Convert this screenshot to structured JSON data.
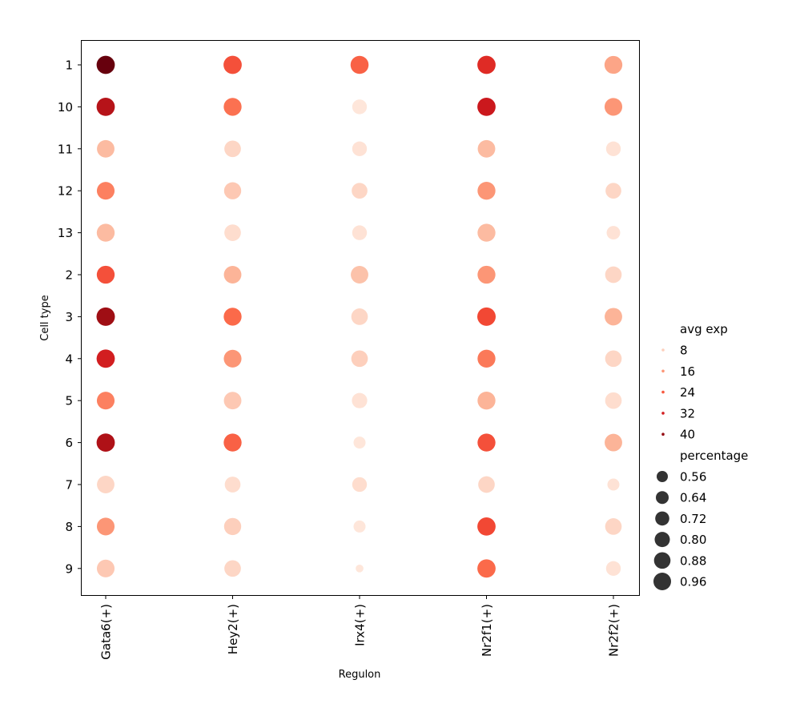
{
  "chart_data": {
    "type": "dotplot",
    "xlabel": "Regulon",
    "ylabel": "Cell type",
    "regulons": [
      "Gata6(+)",
      "Hey2(+)",
      "Irx4(+)",
      "Nr2f1(+)",
      "Nr2f2(+)"
    ],
    "cell_types": [
      "1",
      "10",
      "11",
      "12",
      "13",
      "2",
      "3",
      "4",
      "5",
      "6",
      "7",
      "8",
      "9"
    ],
    "points": [
      {
        "cell_type": "1",
        "values": [
          {
            "avg_exp": 44,
            "percentage": 0.95
          },
          {
            "avg_exp": 25,
            "percentage": 0.95
          },
          {
            "avg_exp": 23,
            "percentage": 0.94
          },
          {
            "avg_exp": 30,
            "percentage": 0.95
          },
          {
            "avg_exp": 14,
            "percentage": 0.93
          }
        ]
      },
      {
        "cell_type": "10",
        "values": [
          {
            "avg_exp": 36,
            "percentage": 0.95
          },
          {
            "avg_exp": 21,
            "percentage": 0.93
          },
          {
            "avg_exp": 4,
            "percentage": 0.77
          },
          {
            "avg_exp": 33,
            "percentage": 0.95
          },
          {
            "avg_exp": 16,
            "percentage": 0.92
          }
        ]
      },
      {
        "cell_type": "11",
        "values": [
          {
            "avg_exp": 11,
            "percentage": 0.91
          },
          {
            "avg_exp": 7,
            "percentage": 0.86
          },
          {
            "avg_exp": 5,
            "percentage": 0.77
          },
          {
            "avg_exp": 11,
            "percentage": 0.91
          },
          {
            "avg_exp": 5,
            "percentage": 0.77
          }
        ]
      },
      {
        "cell_type": "12",
        "values": [
          {
            "avg_exp": 19,
            "percentage": 0.92
          },
          {
            "avg_exp": 9,
            "percentage": 0.89
          },
          {
            "avg_exp": 7,
            "percentage": 0.82
          },
          {
            "avg_exp": 16,
            "percentage": 0.93
          },
          {
            "avg_exp": 7,
            "percentage": 0.82
          }
        ]
      },
      {
        "cell_type": "13",
        "values": [
          {
            "avg_exp": 11,
            "percentage": 0.93
          },
          {
            "avg_exp": 6,
            "percentage": 0.86
          },
          {
            "avg_exp": 5,
            "percentage": 0.77
          },
          {
            "avg_exp": 11,
            "percentage": 0.93
          },
          {
            "avg_exp": 5,
            "percentage": 0.72
          }
        ]
      },
      {
        "cell_type": "2",
        "values": [
          {
            "avg_exp": 25,
            "percentage": 0.93
          },
          {
            "avg_exp": 12,
            "percentage": 0.91
          },
          {
            "avg_exp": 10,
            "percentage": 0.91
          },
          {
            "avg_exp": 16,
            "percentage": 0.93
          },
          {
            "avg_exp": 7,
            "percentage": 0.86
          }
        ]
      },
      {
        "cell_type": "3",
        "values": [
          {
            "avg_exp": 39,
            "percentage": 0.96
          },
          {
            "avg_exp": 22,
            "percentage": 0.93
          },
          {
            "avg_exp": 7,
            "percentage": 0.86
          },
          {
            "avg_exp": 26,
            "percentage": 0.96
          },
          {
            "avg_exp": 12,
            "percentage": 0.91
          }
        ]
      },
      {
        "cell_type": "4",
        "values": [
          {
            "avg_exp": 32,
            "percentage": 0.95
          },
          {
            "avg_exp": 16,
            "percentage": 0.92
          },
          {
            "avg_exp": 8,
            "percentage": 0.86
          },
          {
            "avg_exp": 20,
            "percentage": 0.93
          },
          {
            "avg_exp": 7,
            "percentage": 0.86
          }
        ]
      },
      {
        "cell_type": "5",
        "values": [
          {
            "avg_exp": 19,
            "percentage": 0.92
          },
          {
            "avg_exp": 9,
            "percentage": 0.91
          },
          {
            "avg_exp": 5,
            "percentage": 0.8
          },
          {
            "avg_exp": 12,
            "percentage": 0.93
          },
          {
            "avg_exp": 6,
            "percentage": 0.86
          }
        ]
      },
      {
        "cell_type": "6",
        "values": [
          {
            "avg_exp": 37,
            "percentage": 0.95
          },
          {
            "avg_exp": 23,
            "percentage": 0.93
          },
          {
            "avg_exp": 4,
            "percentage": 0.66
          },
          {
            "avg_exp": 25,
            "percentage": 0.93
          },
          {
            "avg_exp": 12,
            "percentage": 0.91
          }
        ]
      },
      {
        "cell_type": "7",
        "values": [
          {
            "avg_exp": 7,
            "percentage": 0.91
          },
          {
            "avg_exp": 6,
            "percentage": 0.82
          },
          {
            "avg_exp": 6,
            "percentage": 0.77
          },
          {
            "avg_exp": 7,
            "percentage": 0.86
          },
          {
            "avg_exp": 5,
            "percentage": 0.66
          }
        ]
      },
      {
        "cell_type": "8",
        "values": [
          {
            "avg_exp": 16,
            "percentage": 0.92
          },
          {
            "avg_exp": 8,
            "percentage": 0.89
          },
          {
            "avg_exp": 4,
            "percentage": 0.66
          },
          {
            "avg_exp": 26,
            "percentage": 0.95
          },
          {
            "avg_exp": 7,
            "percentage": 0.86
          }
        ]
      },
      {
        "cell_type": "9",
        "values": [
          {
            "avg_exp": 9,
            "percentage": 0.92
          },
          {
            "avg_exp": 7,
            "percentage": 0.86
          },
          {
            "avg_exp": 4,
            "percentage": 0.53
          },
          {
            "avg_exp": 22,
            "percentage": 0.95
          },
          {
            "avg_exp": 5,
            "percentage": 0.77
          }
        ]
      }
    ],
    "color_legend": {
      "title": "avg exp",
      "entries": [
        {
          "label": "8",
          "value": 8
        },
        {
          "label": "16",
          "value": 16
        },
        {
          "label": "24",
          "value": 24
        },
        {
          "label": "32",
          "value": 32
        },
        {
          "label": "40",
          "value": 40
        }
      ]
    },
    "size_legend": {
      "title": "percentage",
      "entries": [
        {
          "label": "0.56",
          "value": 0.56
        },
        {
          "label": "0.64",
          "value": 0.64
        },
        {
          "label": "0.72",
          "value": 0.72
        },
        {
          "label": "0.80",
          "value": 0.8
        },
        {
          "label": "0.88",
          "value": 0.88
        },
        {
          "label": "0.96",
          "value": 0.96
        }
      ]
    },
    "color_range": [
      0,
      44
    ],
    "size_range": [
      0.5,
      0.96
    ],
    "colormap": "Reds",
    "legend_placement": "right",
    "grid": false
  }
}
